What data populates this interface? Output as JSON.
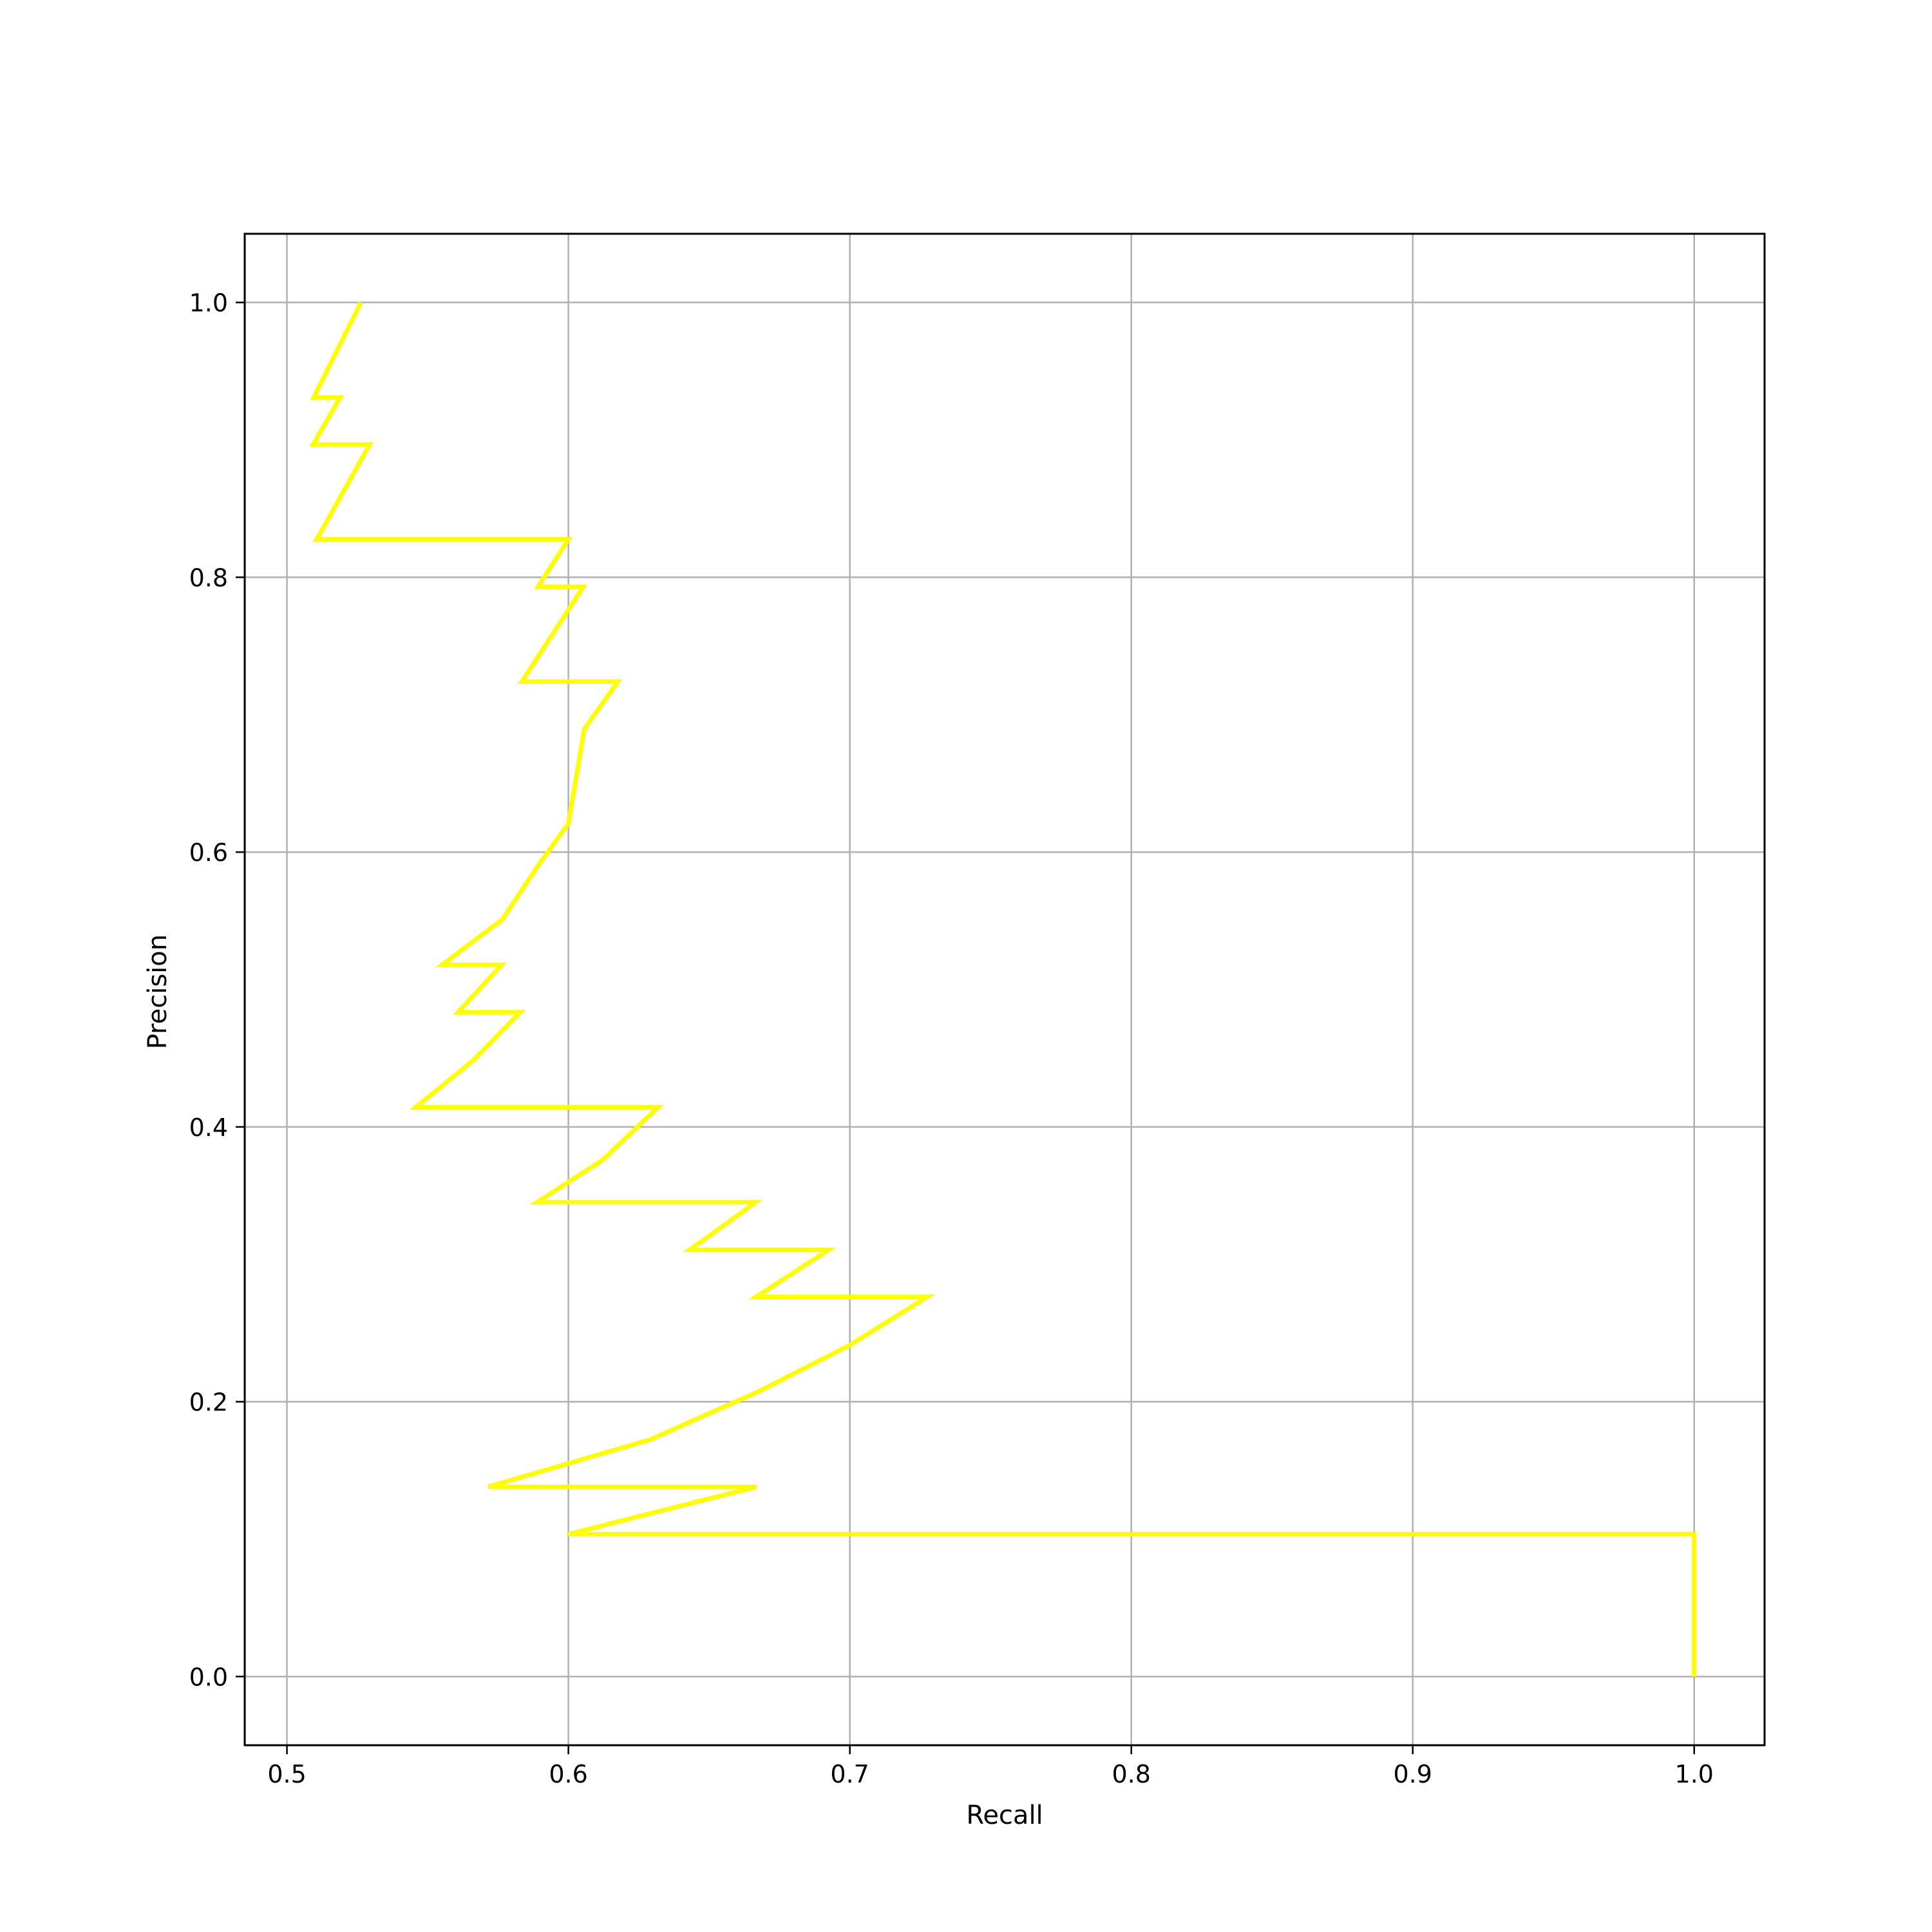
{
  "chart_data": {
    "type": "line",
    "title": "",
    "xlabel": "Recall",
    "ylabel": "Precision",
    "xlim": [
      0.485,
      1.025
    ],
    "ylim": [
      -0.05,
      1.05
    ],
    "xticks": [
      "0.5",
      "0.6",
      "0.7",
      "0.8",
      "0.9",
      "1.0"
    ],
    "yticks": [
      "0.0",
      "0.2",
      "0.4",
      "0.6",
      "0.8",
      "1.0"
    ],
    "grid": true,
    "series": [
      {
        "color": "#ffff00",
        "x": [
          0.5263,
          0.5095,
          0.5189,
          0.5093,
          0.5294,
          0.5106,
          0.6,
          0.5892,
          0.6053,
          0.5835,
          0.6176,
          0.6057,
          0.6,
          0.5898,
          0.5765,
          0.5551,
          0.5763,
          0.5608,
          0.5829,
          0.5662,
          0.5458,
          0.6318,
          0.6123,
          0.5889,
          0.6666,
          0.6431,
          0.6924,
          0.6668,
          0.7275,
          0.7,
          0.6674,
          0.6293,
          0.5716,
          0.6668,
          0.6,
          1.0,
          1.0
        ],
        "y": [
          1.0,
          0.9309,
          0.9309,
          0.8966,
          0.8966,
          0.8276,
          0.8276,
          0.7931,
          0.7931,
          0.7241,
          0.7241,
          0.6897,
          0.6207,
          0.5918,
          0.5509,
          0.5179,
          0.5179,
          0.4835,
          0.4835,
          0.4484,
          0.4143,
          0.4143,
          0.3761,
          0.3452,
          0.3452,
          0.3105,
          0.3105,
          0.2763,
          0.2763,
          0.2412,
          0.2073,
          0.1726,
          0.1381,
          0.1381,
          0.1036,
          0.1036,
          0.0
        ]
      }
    ]
  }
}
